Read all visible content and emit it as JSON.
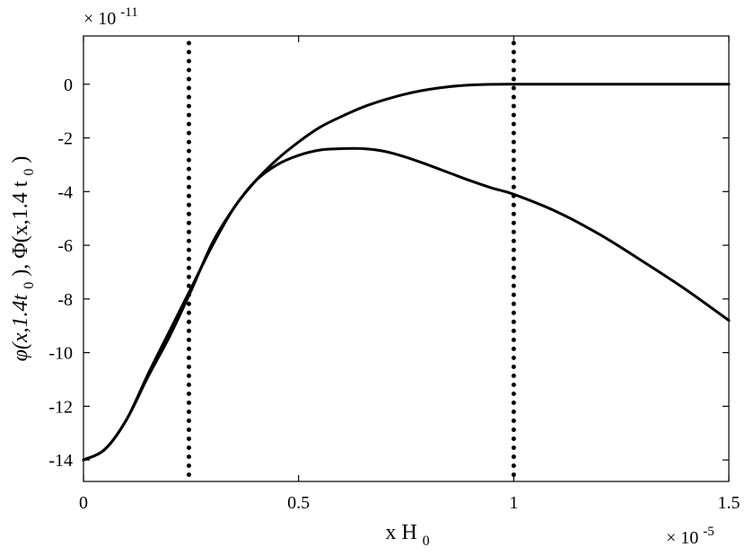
{
  "chart_data": {
    "type": "line",
    "title": "",
    "xlabel": "x H",
    "xlabel_sub": "0",
    "ylabel_parts": [
      "φ(x,1.4t",
      "0",
      "), Φ(x,1.4 t",
      "0",
      ")"
    ],
    "x_exponent_prefix": "× 10",
    "x_exponent": "-5",
    "y_exponent_prefix": "× 10",
    "y_exponent": "-11",
    "xlim": [
      0,
      1.5
    ],
    "ylim": [
      -14.8,
      1.8
    ],
    "x_ticks": [
      0,
      0.5,
      1,
      1.5
    ],
    "x_tick_labels": [
      "0",
      "0.5",
      "1",
      "1.5"
    ],
    "y_ticks": [
      0,
      -2,
      -4,
      -6,
      -8,
      -10,
      -12,
      -14
    ],
    "y_tick_labels": [
      "0",
      "-2",
      "-4",
      "-6",
      "-8",
      "-10",
      "-12",
      "-14"
    ],
    "grid": false,
    "series": [
      {
        "line_style": "solid",
        "color": "#000000",
        "x": [
          0,
          0.05,
          0.1,
          0.15,
          0.2,
          0.25,
          0.3,
          0.35,
          0.4,
          0.45,
          0.5,
          0.55,
          0.6,
          0.65,
          0.7,
          0.75,
          0.8,
          0.85,
          0.9,
          0.95,
          1.0,
          1.1,
          1.2,
          1.3,
          1.4,
          1.5
        ],
        "y": [
          -14.0,
          -13.6,
          -12.5,
          -10.8,
          -9.2,
          -7.6,
          -6.0,
          -4.6,
          -3.6,
          -2.8,
          -2.15,
          -1.6,
          -1.2,
          -0.85,
          -0.58,
          -0.36,
          -0.2,
          -0.09,
          -0.03,
          -0.005,
          0,
          0,
          0,
          0,
          0,
          0
        ]
      },
      {
        "line_style": "solid",
        "color": "#000000",
        "x": [
          0,
          0.05,
          0.1,
          0.15,
          0.2,
          0.25,
          0.3,
          0.35,
          0.4,
          0.45,
          0.5,
          0.55,
          0.6,
          0.65,
          0.7,
          0.75,
          0.8,
          0.85,
          0.9,
          0.95,
          1.0,
          1.1,
          1.2,
          1.3,
          1.4,
          1.5
        ],
        "y": [
          -14.0,
          -13.6,
          -12.5,
          -10.9,
          -9.4,
          -7.7,
          -5.9,
          -4.6,
          -3.6,
          -3.0,
          -2.65,
          -2.45,
          -2.4,
          -2.4,
          -2.5,
          -2.72,
          -3.0,
          -3.3,
          -3.6,
          -3.87,
          -4.1,
          -4.75,
          -5.6,
          -6.6,
          -7.65,
          -8.8
        ]
      }
    ],
    "vlines": [
      {
        "x": 0.245,
        "line_style": "dotted",
        "color": "#000000"
      },
      {
        "x": 1.0,
        "line_style": "dotted",
        "color": "#000000"
      }
    ]
  }
}
